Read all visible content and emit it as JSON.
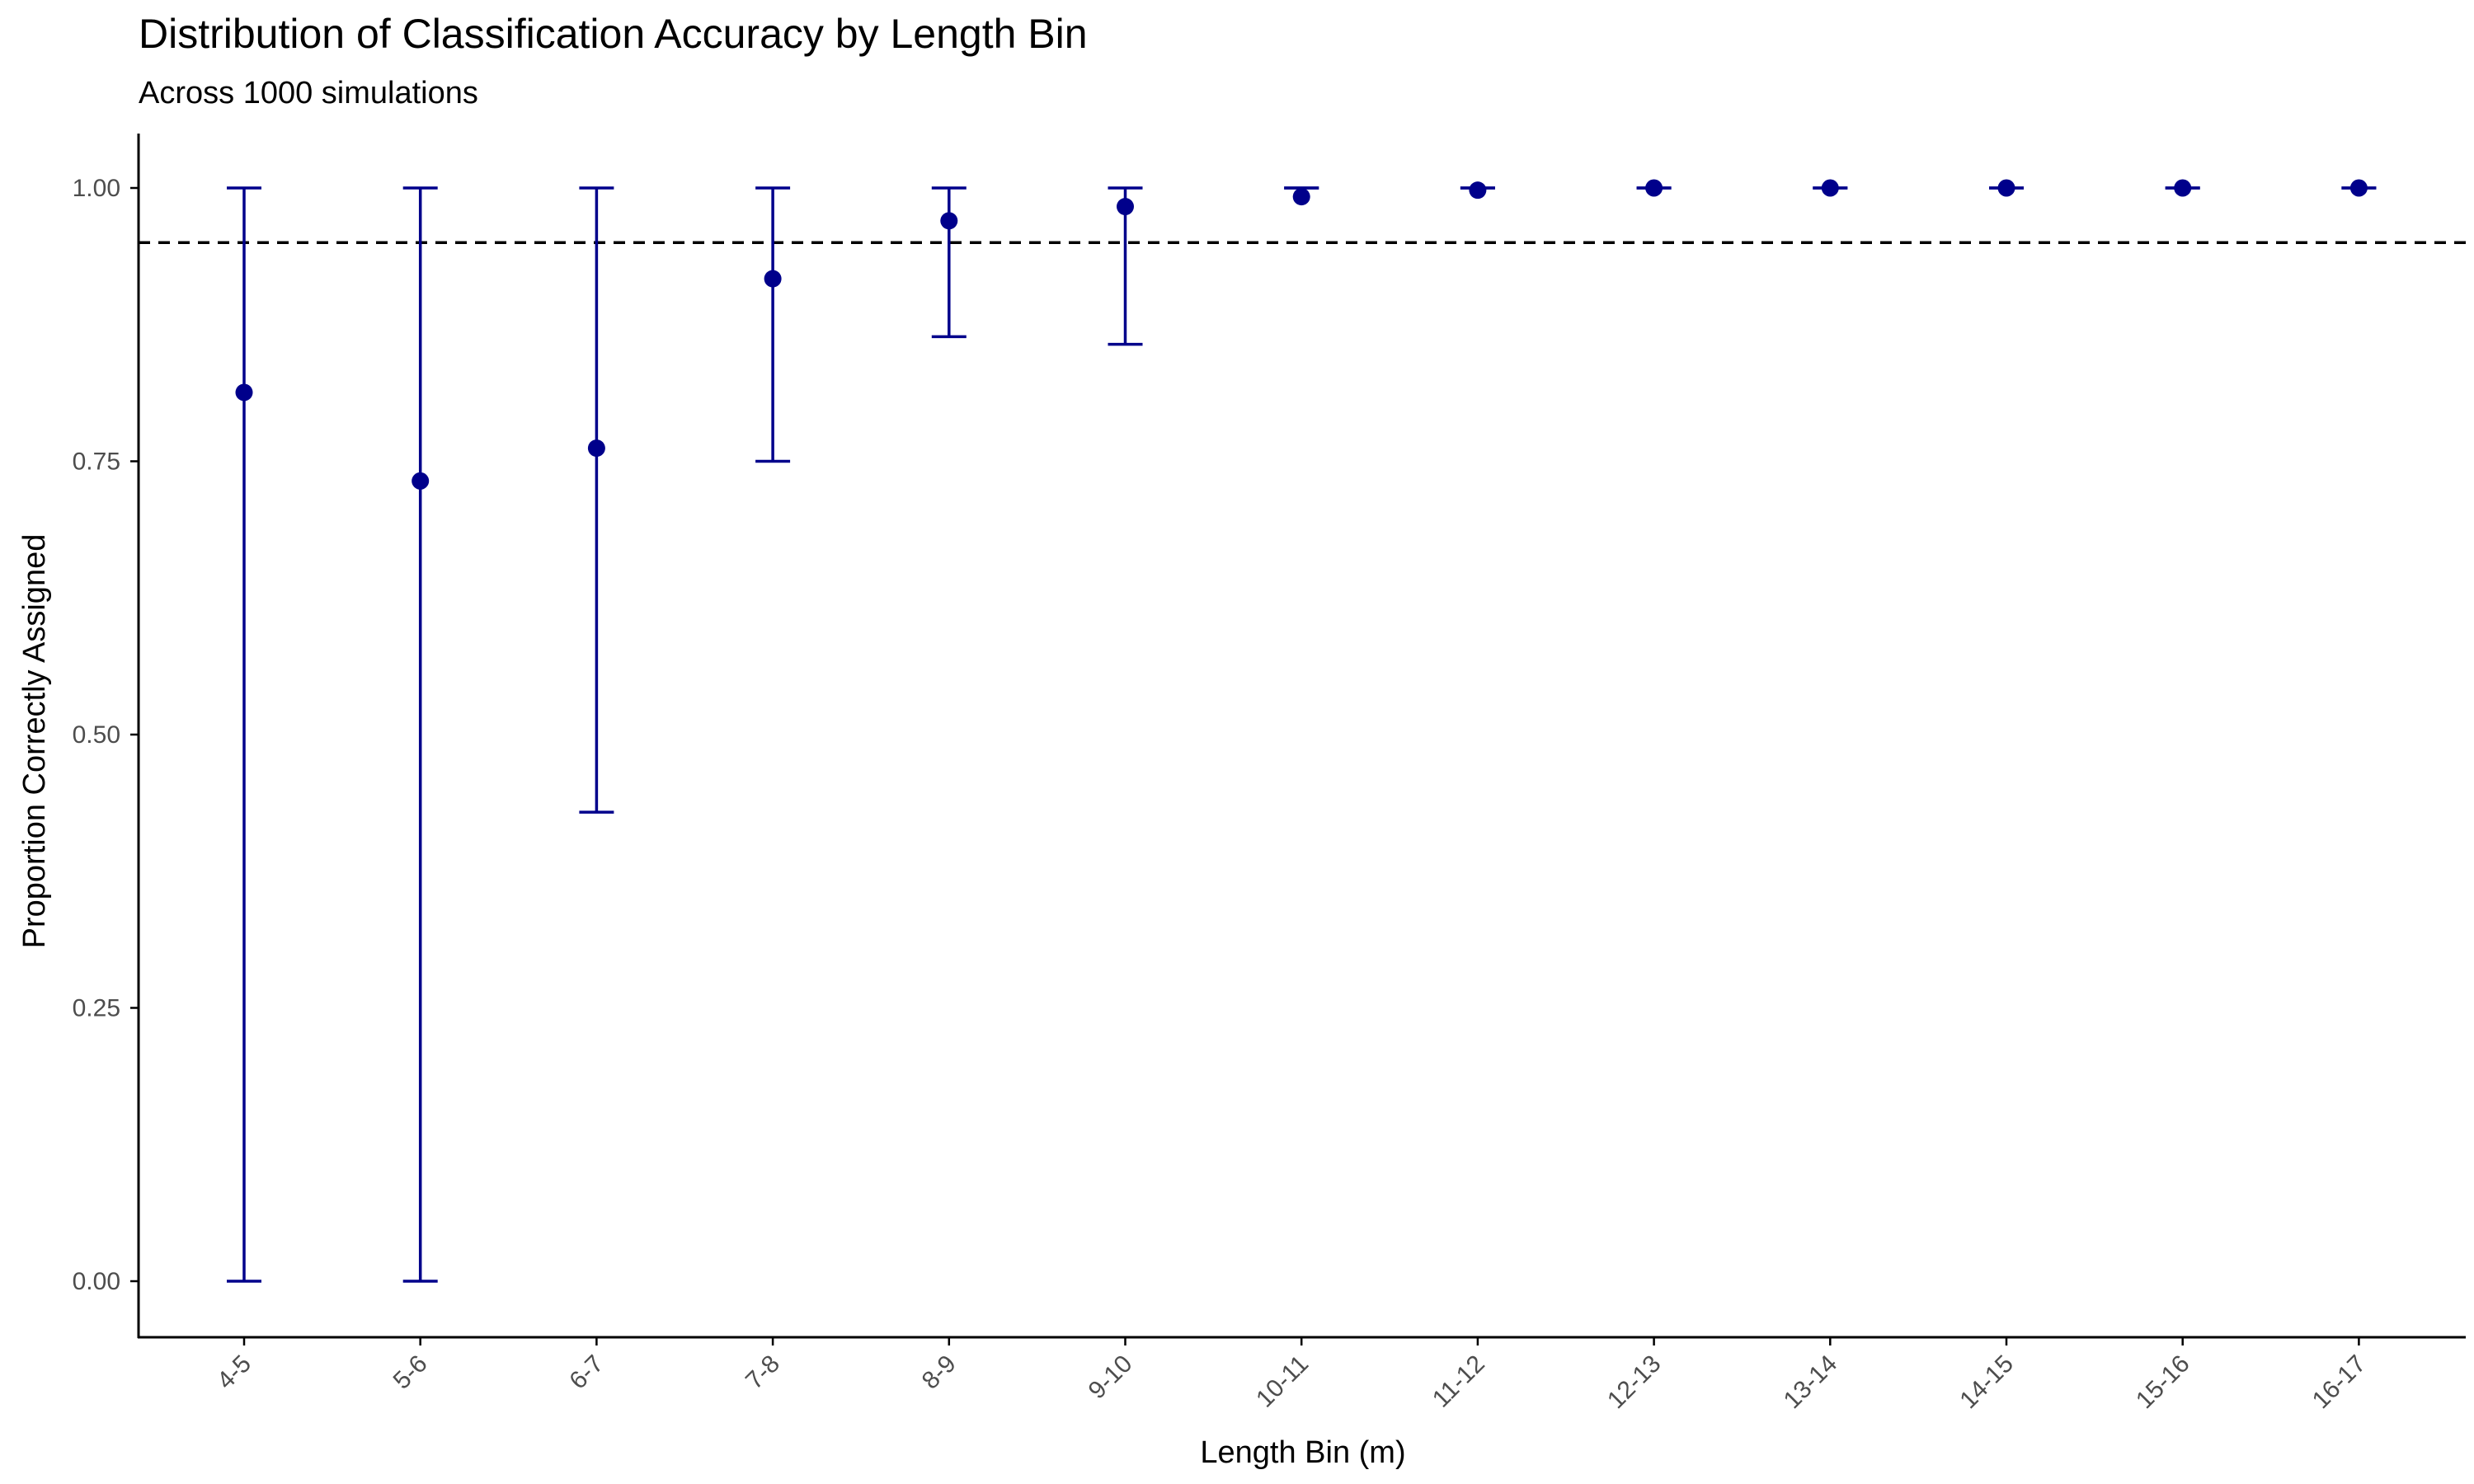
{
  "chart_data": {
    "type": "scatter",
    "title": "Distribution of Classification Accuracy by Length Bin",
    "subtitle": "Across 1000 simulations",
    "xlabel": "Length Bin (m)",
    "ylabel": "Proportion Correctly Assigned",
    "categories": [
      "4-5",
      "5-6",
      "6-7",
      "7-8",
      "8-9",
      "9-10",
      "10-11",
      "11-12",
      "12-13",
      "13-14",
      "14-15",
      "15-16",
      "16-17"
    ],
    "values": [
      0.813,
      0.732,
      0.762,
      0.917,
      0.97,
      0.983,
      0.992,
      0.998,
      1.0,
      1.0,
      1.0,
      1.0,
      1.0
    ],
    "lower": [
      0.0,
      0.0,
      0.429,
      0.75,
      0.864,
      0.857,
      1.0,
      1.0,
      1.0,
      1.0,
      1.0,
      1.0,
      1.0
    ],
    "upper": [
      1.0,
      1.0,
      1.0,
      1.0,
      1.0,
      1.0,
      1.0,
      1.0,
      1.0,
      1.0,
      1.0,
      1.0,
      1.0
    ],
    "reference_line": 0.95,
    "ylim": [
      -0.052,
      1.052
    ],
    "yticks": [
      0.0,
      0.25,
      0.5,
      0.75,
      1.0
    ],
    "ytick_labels": [
      "0.00",
      "0.25",
      "0.50",
      "0.75",
      "1.00"
    ],
    "grid": false,
    "colors": {
      "series": "#00008b",
      "reference": "#000000",
      "axis": "#000000",
      "tick_text": "#4d4d4d"
    }
  }
}
